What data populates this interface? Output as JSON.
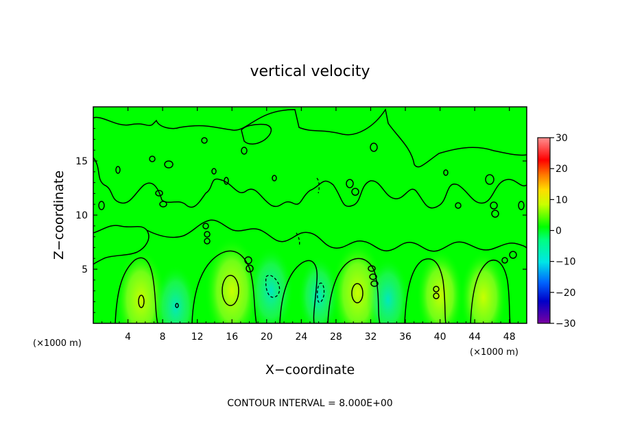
{
  "chart_data": {
    "type": "heatmap",
    "title": "vertical velocity",
    "xlabel": "X−coordinate",
    "ylabel": "Z−coordinate",
    "x_unit": "(×1000 m)",
    "y_unit": "(×1000 m)",
    "xlim": [
      0,
      50
    ],
    "ylim": [
      0,
      20
    ],
    "x_ticks": [
      "4",
      "8",
      "12",
      "16",
      "20",
      "24",
      "28",
      "32",
      "36",
      "40",
      "44",
      "48"
    ],
    "y_ticks": [
      "5",
      "10",
      "15"
    ],
    "colorbar": {
      "ticks": [
        "30",
        "20",
        "10",
        "0",
        "−10",
        "−20",
        "−30"
      ],
      "range": [
        -30,
        30
      ],
      "colors": [
        "#7a00a0",
        "#0000c8",
        "#0064ff",
        "#00e6e6",
        "#00ff00",
        "#d4ff00",
        "#ffdc00",
        "#ff7800",
        "#ff0000",
        "#ff9090"
      ]
    },
    "contour_interval": "CONTOUR INTERVAL = 8.000E+00",
    "background_color": "#00ff00",
    "features": [
      {
        "kind": "updraft",
        "x": 5.5,
        "z": 2.2,
        "w": 8
      },
      {
        "kind": "updraft",
        "x": 16,
        "z": 3.0,
        "w": 10
      },
      {
        "kind": "updraft",
        "x": 30.5,
        "z": 2.8,
        "w": 9
      },
      {
        "kind": "updraft",
        "x": 40,
        "z": 2.6,
        "w": 6
      },
      {
        "kind": "updraft",
        "x": 45,
        "z": 2.4,
        "w": 6
      },
      {
        "kind": "downdraft",
        "x": 9.5,
        "z": 1.5,
        "w": -4
      },
      {
        "kind": "downdraft",
        "x": 20.5,
        "z": 3.0,
        "w": -5
      },
      {
        "kind": "downdraft",
        "x": 26,
        "z": 2.5,
        "w": -3
      },
      {
        "kind": "downdraft",
        "x": 34,
        "z": 2.2,
        "w": -4
      }
    ]
  }
}
